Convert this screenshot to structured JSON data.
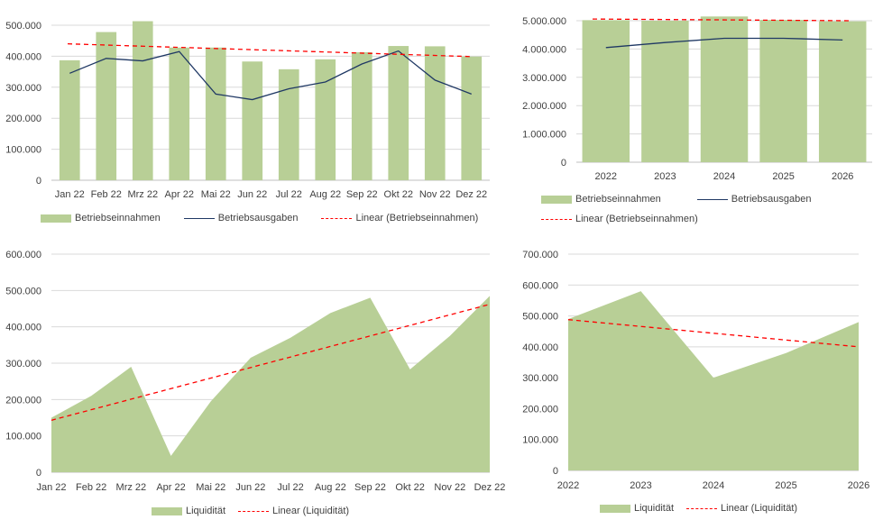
{
  "colors": {
    "green": "#b8cf96",
    "navy": "#1f3864",
    "trend": "#ff0000",
    "grid": "#d9d9d9",
    "axis": "#bfbfbf"
  },
  "chart_data": [
    {
      "id": "monthly",
      "type": "bar",
      "categories": [
        "Jan 22",
        "Feb 22",
        "Mrz 22",
        "Apr 22",
        "Mai 22",
        "Jun 22",
        "Jul 22",
        "Aug 22",
        "Sep 22",
        "Okt 22",
        "Nov 22",
        "Dez 22"
      ],
      "series": [
        {
          "name": "Betriebseinnahmen",
          "type": "bar",
          "values": [
            387000,
            478000,
            513000,
            428000,
            428000,
            383000,
            358000,
            390000,
            413000,
            433000,
            432000,
            399000
          ]
        },
        {
          "name": "Betriebsausgaben",
          "type": "line",
          "values": [
            345000,
            393000,
            385000,
            415000,
            278000,
            260000,
            295000,
            317000,
            375000,
            417000,
            323000,
            278000
          ]
        }
      ],
      "trendline": {
        "name": "Linear (Betriebseinnahmen)",
        "values": [
          440000,
          399000
        ]
      },
      "yticks": [
        "0",
        "100.000",
        "200.000",
        "300.000",
        "400.000",
        "500.000"
      ],
      "ylim": [
        0,
        500000
      ],
      "legend_position": "bottom"
    },
    {
      "id": "yearly",
      "type": "bar",
      "categories": [
        "2022",
        "2023",
        "2024",
        "2025",
        "2026"
      ],
      "series": [
        {
          "name": "Betriebseinnahmen",
          "type": "bar",
          "values": [
            5020000,
            5000000,
            5150000,
            5030000,
            4980000
          ]
        },
        {
          "name": "Betriebsausgaben",
          "type": "line",
          "values": [
            4050000,
            4230000,
            4380000,
            4380000,
            4320000
          ]
        }
      ],
      "trendline": {
        "name": "Linear (Betriebseinnahmen)",
        "values": [
          5060000,
          5000000
        ]
      },
      "yticks": [
        "0",
        "1.000.000",
        "2.000.000",
        "3.000.000",
        "4.000.000",
        "5.000.000"
      ],
      "ylim": [
        0,
        5000000
      ],
      "legend_position": "bottom"
    },
    {
      "id": "liq-monthly",
      "type": "area",
      "categories": [
        "Jan 22",
        "Feb 22",
        "Mrz 22",
        "Apr 22",
        "Mai 22",
        "Jun 22",
        "Jul 22",
        "Aug 22",
        "Sep 22",
        "Okt 22",
        "Nov 22",
        "Dez 22"
      ],
      "series": [
        {
          "name": "Liquidität",
          "values": [
            150000,
            210000,
            290000,
            45000,
            195000,
            315000,
            370000,
            438000,
            480000,
            283000,
            375000,
            485000
          ]
        }
      ],
      "trendline": {
        "name": "Linear (Liquidität)",
        "values": [
          143000,
          462000
        ]
      },
      "yticks": [
        "0",
        "100.000",
        "200.000",
        "300.000",
        "400.000",
        "500.000",
        "600.000"
      ],
      "ylim": [
        0,
        600000
      ],
      "legend_position": "bottom"
    },
    {
      "id": "liq-yearly",
      "type": "area",
      "categories": [
        "2022",
        "2023",
        "2024",
        "2025",
        "2026"
      ],
      "series": [
        {
          "name": "Liquidität",
          "values": [
            490000,
            580000,
            300000,
            380000,
            480000
          ]
        }
      ],
      "trendline": {
        "name": "Linear (Liquidität)",
        "values": [
          488000,
          400000
        ]
      },
      "yticks": [
        "0",
        "100.000",
        "200.000",
        "300.000",
        "400.000",
        "500.000",
        "600.000",
        "700.000"
      ],
      "ylim": [
        0,
        700000
      ],
      "legend_position": "bottom"
    }
  ]
}
